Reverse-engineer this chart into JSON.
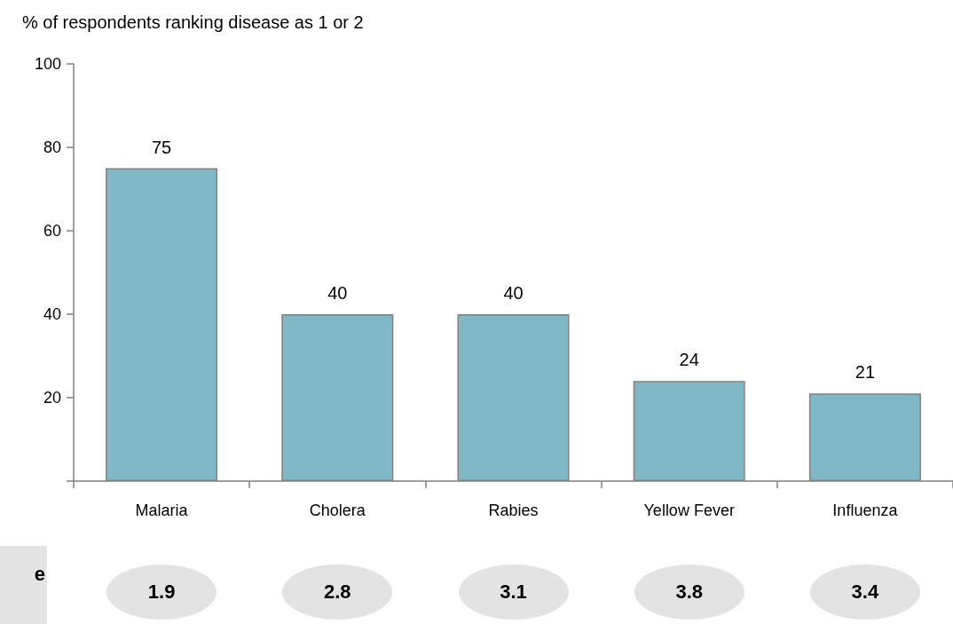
{
  "chart_data": {
    "type": "bar",
    "title": "% of respondents ranking disease as 1 or 2",
    "categories": [
      "Malaria",
      "Cholera",
      "Rabies",
      "Yellow Fever",
      "Influenza"
    ],
    "values": [
      75,
      40,
      40,
      24,
      21
    ],
    "color": "#7fb8c6",
    "data_labels": true,
    "ylim": [
      0,
      100
    ],
    "yticks": [
      {
        "value": 0,
        "label": null
      },
      20,
      40,
      60,
      80,
      100
    ],
    "grid": false,
    "annotations": [
      "e",
      "1.9",
      "2.8",
      "3.1",
      "3.8",
      "3.4"
    ]
  }
}
